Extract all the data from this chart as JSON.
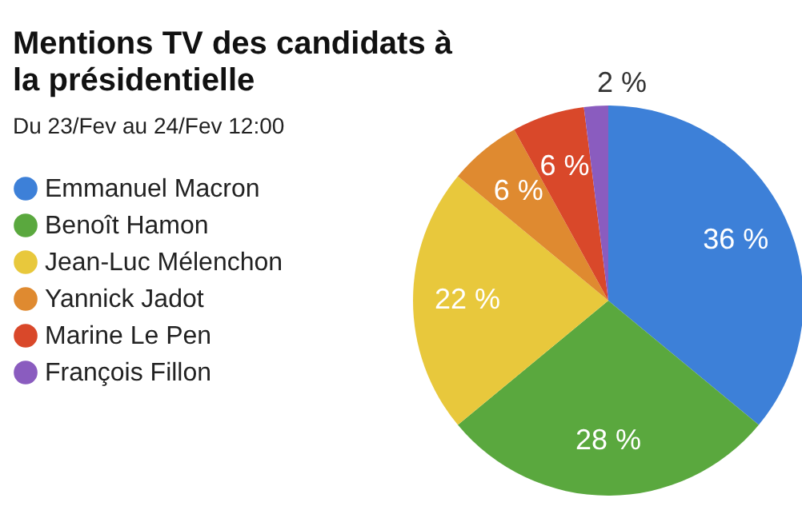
{
  "chart_data": {
    "type": "pie",
    "title": "Mentions TV des candidats à la présidentielle",
    "subtitle": "Du 23/Fev au 24/Fev 12:00",
    "categories": [
      "Emmanuel Macron",
      "Benoît Hamon",
      "Jean-Luc Mélenchon",
      "Yannick Jadot",
      "Marine Le Pen",
      "François Fillon"
    ],
    "values": [
      36,
      28,
      22,
      6,
      6,
      2
    ],
    "value_labels": [
      "36 %",
      "28 %",
      "22 %",
      "6 %",
      "6 %",
      "2 %"
    ],
    "colors": [
      "#3d80d8",
      "#5aa83e",
      "#e8c83c",
      "#df8a30",
      "#d9482a",
      "#8a5cbf"
    ],
    "legend": "left"
  }
}
